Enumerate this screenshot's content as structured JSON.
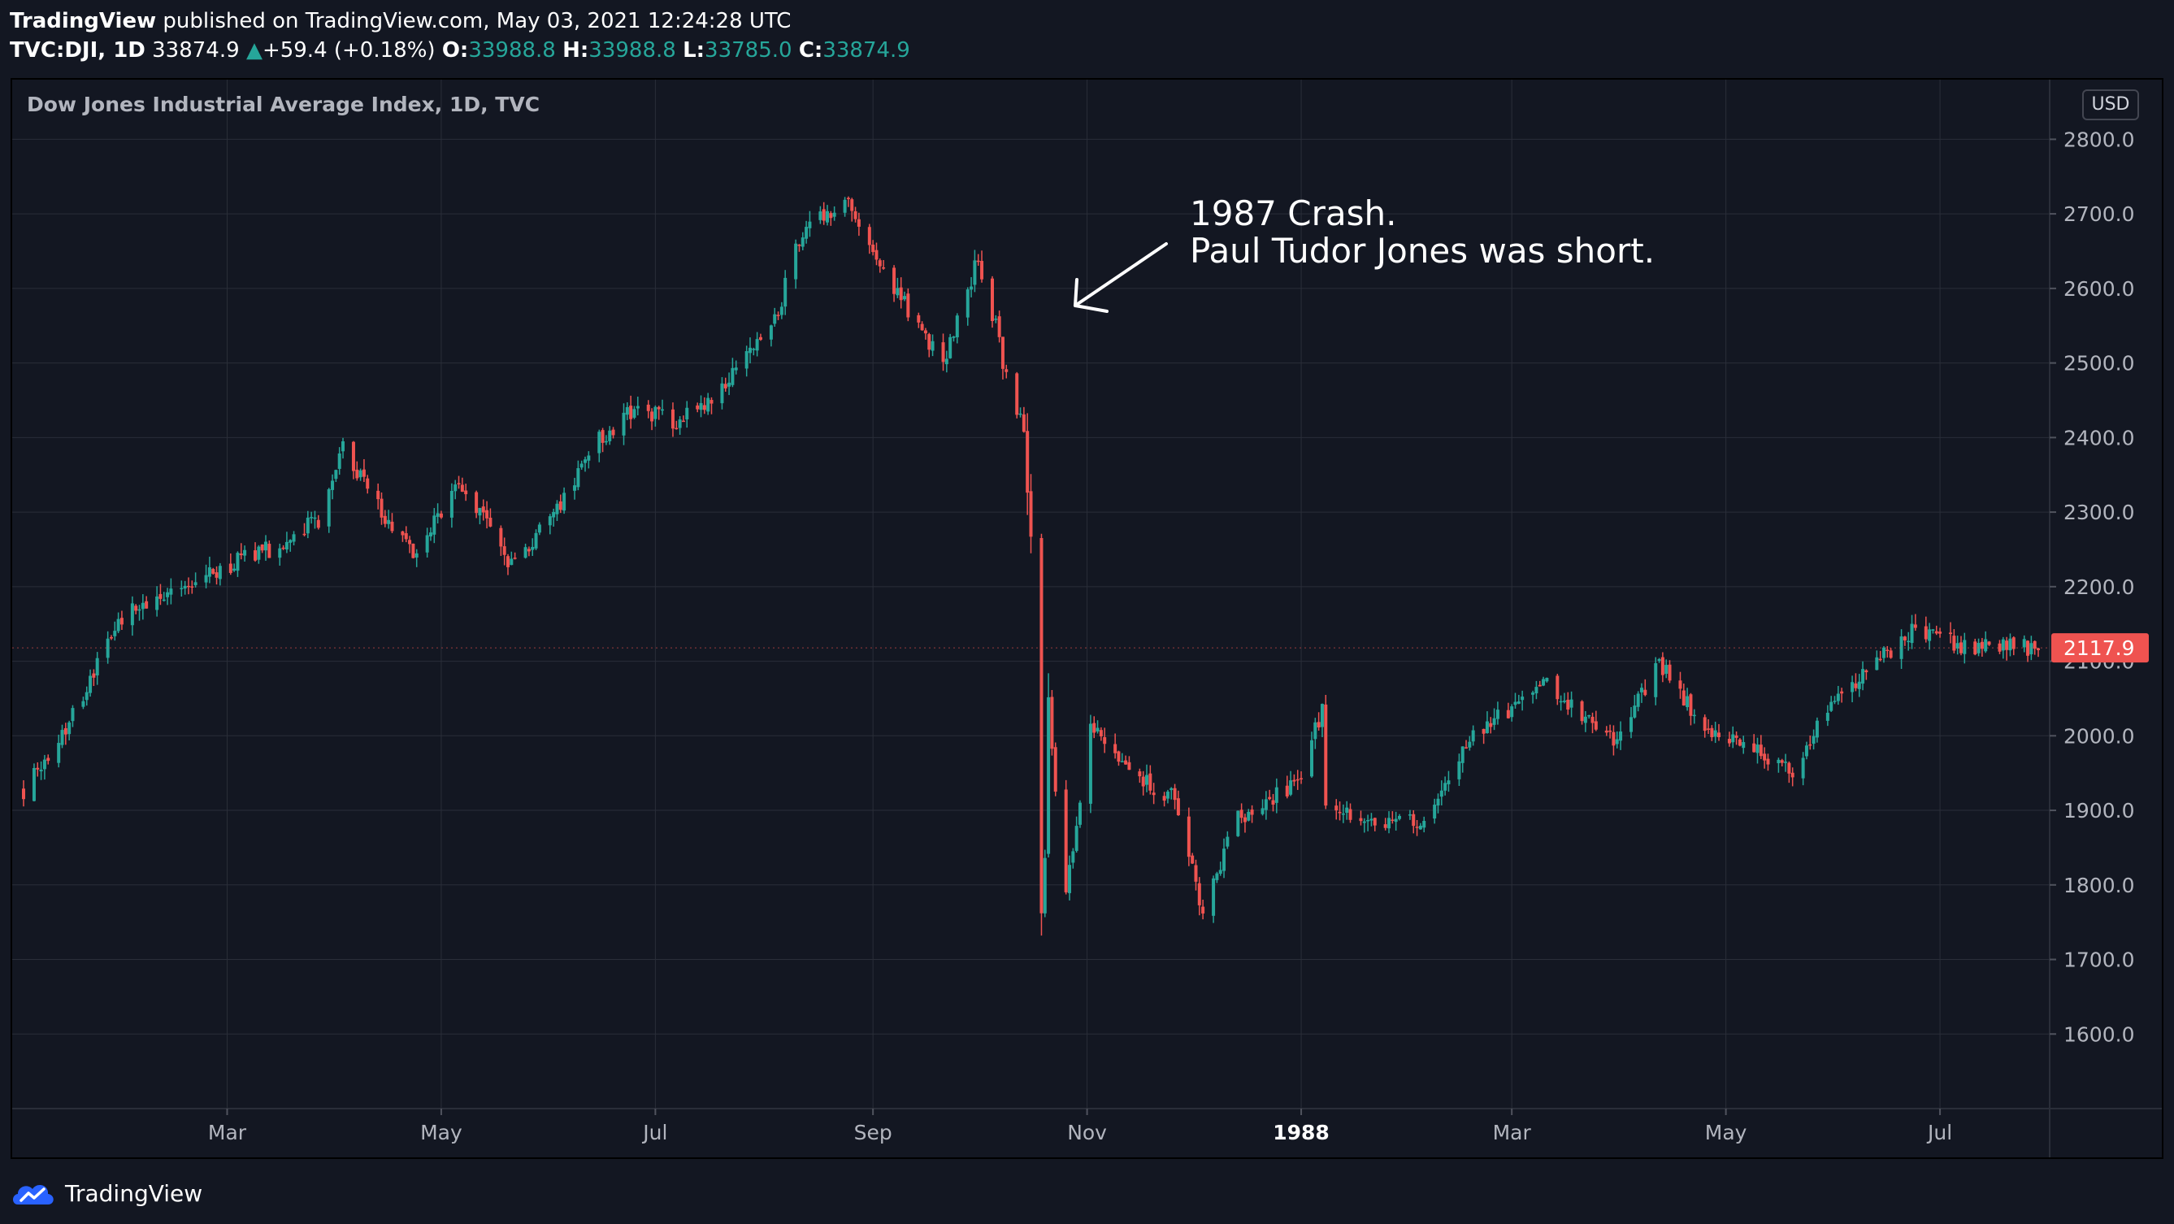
{
  "header": {
    "brand": "TradingView",
    "published": "published on TradingView.com, May 03, 2021 12:24:28 UTC",
    "symbol": "TVC:DJI, 1D",
    "last": "33874.9",
    "change_arrow": "▲",
    "change": "+59.4 (+0.18%)",
    "open_label": "O:",
    "open": "33988.8",
    "high_label": "H:",
    "high": "33988.8",
    "low_label": "L:",
    "low": "33785.0",
    "close_label": "C:",
    "close": "33874.9"
  },
  "chart_title": "Dow Jones Industrial Average Index, 1D, TVC",
  "currency": "USD",
  "annotation": {
    "line1": "1987 Crash.",
    "line2": "Paul Tudor Jones was short."
  },
  "footer": {
    "brand": "TradingView"
  },
  "colors": {
    "background": "#131722",
    "up": "#26a69a",
    "down": "#ef5350",
    "grid": "#2a2e39",
    "axis_text": "#b2b5be"
  },
  "icons": {
    "footer_logo": "tradingview-cloud-icon",
    "annotation_arrow": "arrow-icon"
  },
  "chart_data": {
    "type": "candlestick",
    "title": "Dow Jones Industrial Average Index, 1D, TVC",
    "ylim": [
      1500,
      2880
    ],
    "y_ticks": [
      "2800.0",
      "2700.0",
      "2600.0",
      "2500.0",
      "2400.0",
      "2300.0",
      "2200.0",
      "2100.0",
      "2000.0",
      "1900.0",
      "1800.0",
      "1700.0",
      "1600.0"
    ],
    "x_ticks": [
      {
        "date": "1987-03-01",
        "label": "Mar",
        "bold": false
      },
      {
        "date": "1987-05-01",
        "label": "May",
        "bold": false
      },
      {
        "date": "1987-07-01",
        "label": "Jul",
        "bold": false
      },
      {
        "date": "1987-09-01",
        "label": "Sep",
        "bold": false
      },
      {
        "date": "1987-11-01",
        "label": "Nov",
        "bold": false
      },
      {
        "date": "1988-01-01",
        "label": "1988",
        "bold": true
      },
      {
        "date": "1988-03-01",
        "label": "Mar",
        "bold": false
      },
      {
        "date": "1988-05-01",
        "label": "May",
        "bold": false
      },
      {
        "date": "1988-07-01",
        "label": "Jul",
        "bold": false
      }
    ],
    "x_range": [
      "1987-01-02",
      "1988-07-29"
    ],
    "last_price": "2117.9",
    "grid": true,
    "close_path": [
      [
        "1987-01-02",
        1927
      ],
      [
        "1987-01-15",
        2020
      ],
      [
        "1987-01-30",
        2160
      ],
      [
        "1987-02-13",
        2190
      ],
      [
        "1987-02-27",
        2225
      ],
      [
        "1987-03-13",
        2250
      ],
      [
        "1987-03-27",
        2290
      ],
      [
        "1987-04-03",
        2390
      ],
      [
        "1987-04-14",
        2300
      ],
      [
        "1987-04-24",
        2240
      ],
      [
        "1987-05-05",
        2340
      ],
      [
        "1987-05-13",
        2300
      ],
      [
        "1987-05-20",
        2220
      ],
      [
        "1987-06-01",
        2290
      ],
      [
        "1987-06-15",
        2400
      ],
      [
        "1987-06-26",
        2440
      ],
      [
        "1987-07-08",
        2420
      ],
      [
        "1987-07-20",
        2470
      ],
      [
        "1987-08-03",
        2540
      ],
      [
        "1987-08-12",
        2680
      ],
      [
        "1987-08-25",
        2722
      ],
      [
        "1987-09-04",
        2620
      ],
      [
        "1987-09-14",
        2550
      ],
      [
        "1987-09-21",
        2500
      ],
      [
        "1987-10-01",
        2640
      ],
      [
        "1987-10-06",
        2550
      ],
      [
        "1987-10-09",
        2480
      ],
      [
        "1987-10-14",
        2410
      ],
      [
        "1987-10-16",
        2246
      ],
      [
        "1987-10-19",
        1738
      ],
      [
        "1987-10-20",
        1841
      ],
      [
        "1987-10-21",
        2027
      ],
      [
        "1987-10-26",
        1793
      ],
      [
        "1987-11-02",
        2014
      ],
      [
        "1987-11-16",
        1940
      ],
      [
        "1987-11-25",
        1920
      ],
      [
        "1987-12-04",
        1766
      ],
      [
        "1987-12-14",
        1890
      ],
      [
        "1987-12-31",
        1939
      ],
      [
        "1988-01-07",
        2037
      ],
      [
        "1988-01-08",
        1911
      ],
      [
        "1988-01-20",
        1880
      ],
      [
        "1988-02-05",
        1890
      ],
      [
        "1988-02-19",
        2000
      ],
      [
        "1988-03-10",
        2070
      ],
      [
        "1988-03-31",
        1990
      ],
      [
        "1988-04-12",
        2100
      ],
      [
        "1988-04-25",
        2010
      ],
      [
        "1988-05-11",
        1980
      ],
      [
        "1988-05-20",
        1950
      ],
      [
        "1988-06-01",
        2050
      ],
      [
        "1988-06-23",
        2140
      ],
      [
        "1988-07-08",
        2120
      ],
      [
        "1988-07-29",
        2117.9
      ]
    ]
  }
}
